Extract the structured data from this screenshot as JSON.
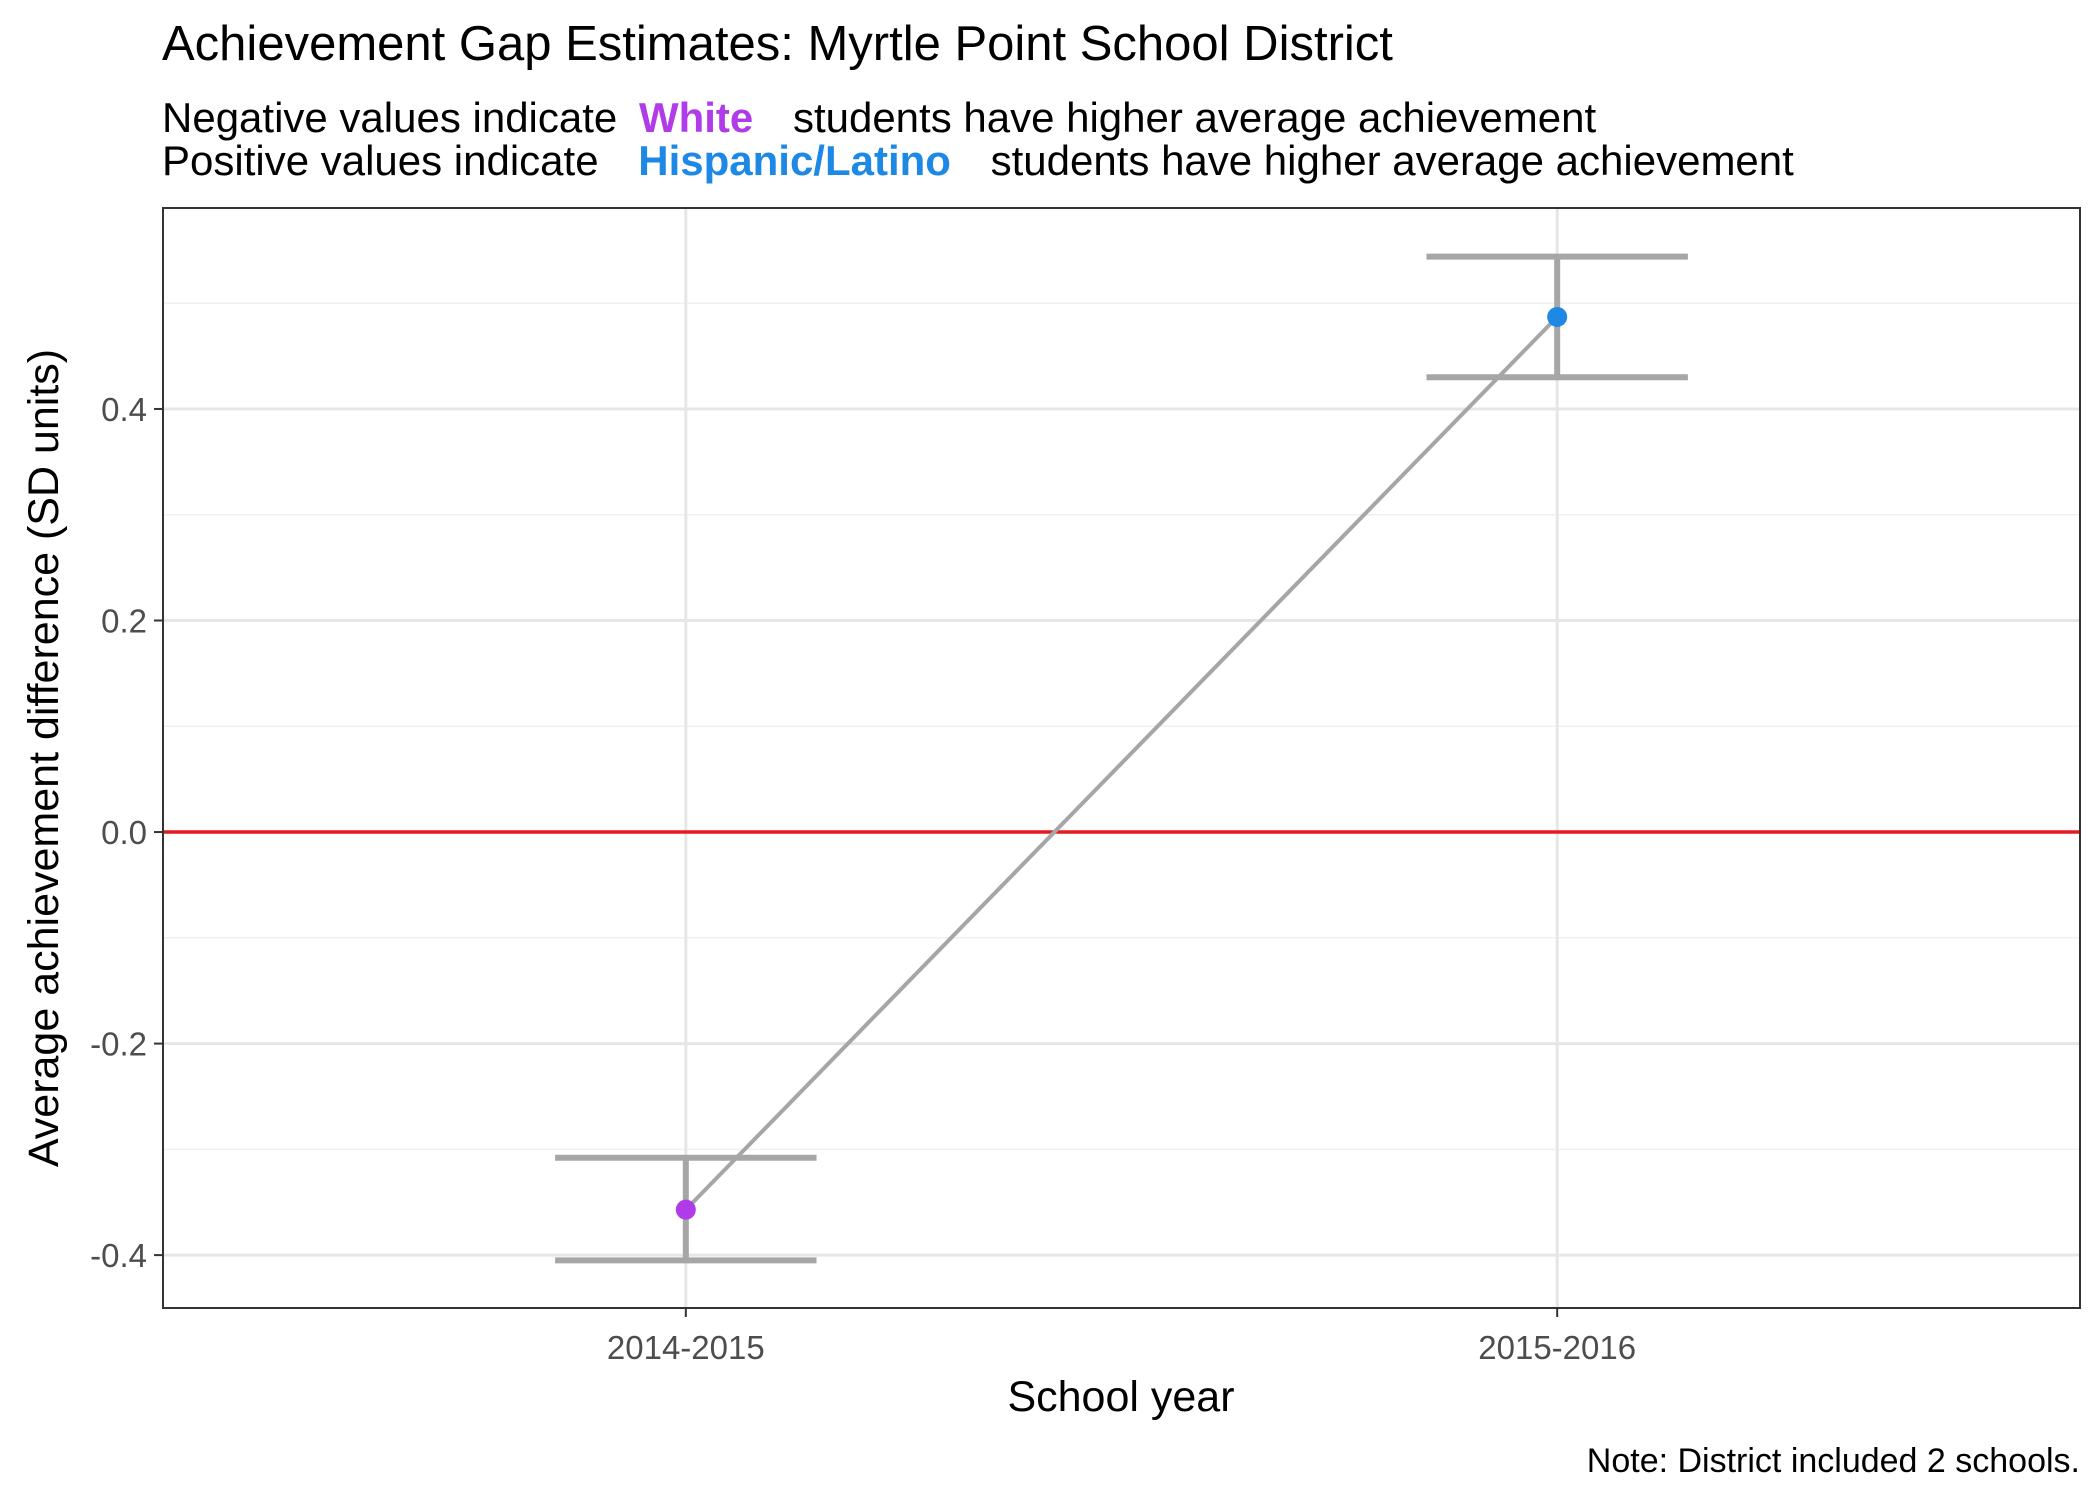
{
  "chart_data": {
    "type": "scatter",
    "title": "Achievement Gap Estimates: Myrtle Point School District",
    "subtitle": [
      {
        "before": "Negative values indicate",
        "highlight": "White",
        "after": "students have higher average achievement"
      },
      {
        "before": "Positive values indicate",
        "highlight": "Hispanic/Latino",
        "after": "students have higher average achievement"
      }
    ],
    "xlabel": "School year",
    "ylabel": "Average achievement difference (SD units)",
    "caption": "Note: District included 2 schools.",
    "categories": [
      "2014-2015",
      "2015-2016"
    ],
    "points": [
      {
        "x": "2014-2015",
        "y": -0.357,
        "ymin": -0.405,
        "ymax": -0.308,
        "color": "#B03BE8"
      },
      {
        "x": "2015-2016",
        "y": 0.487,
        "ymin": 0.43,
        "ymax": 0.544,
        "color": "#1E88E5"
      }
    ],
    "ylim": [
      -0.45,
      0.59
    ],
    "yticks": [
      -0.4,
      -0.2,
      0.0,
      0.2,
      0.4
    ],
    "ytick_labels": [
      "-0.4",
      "-0.2",
      "0.0",
      "0.2",
      "0.4"
    ],
    "reference_line": {
      "y": 0,
      "color": "#E41A1C"
    },
    "connector_color": "#A6A6A6",
    "errorbar_color": "#A6A6A6",
    "grid": true,
    "colors": {
      "white": "#B03BE8",
      "hispanic_latino": "#1E88E5"
    }
  }
}
